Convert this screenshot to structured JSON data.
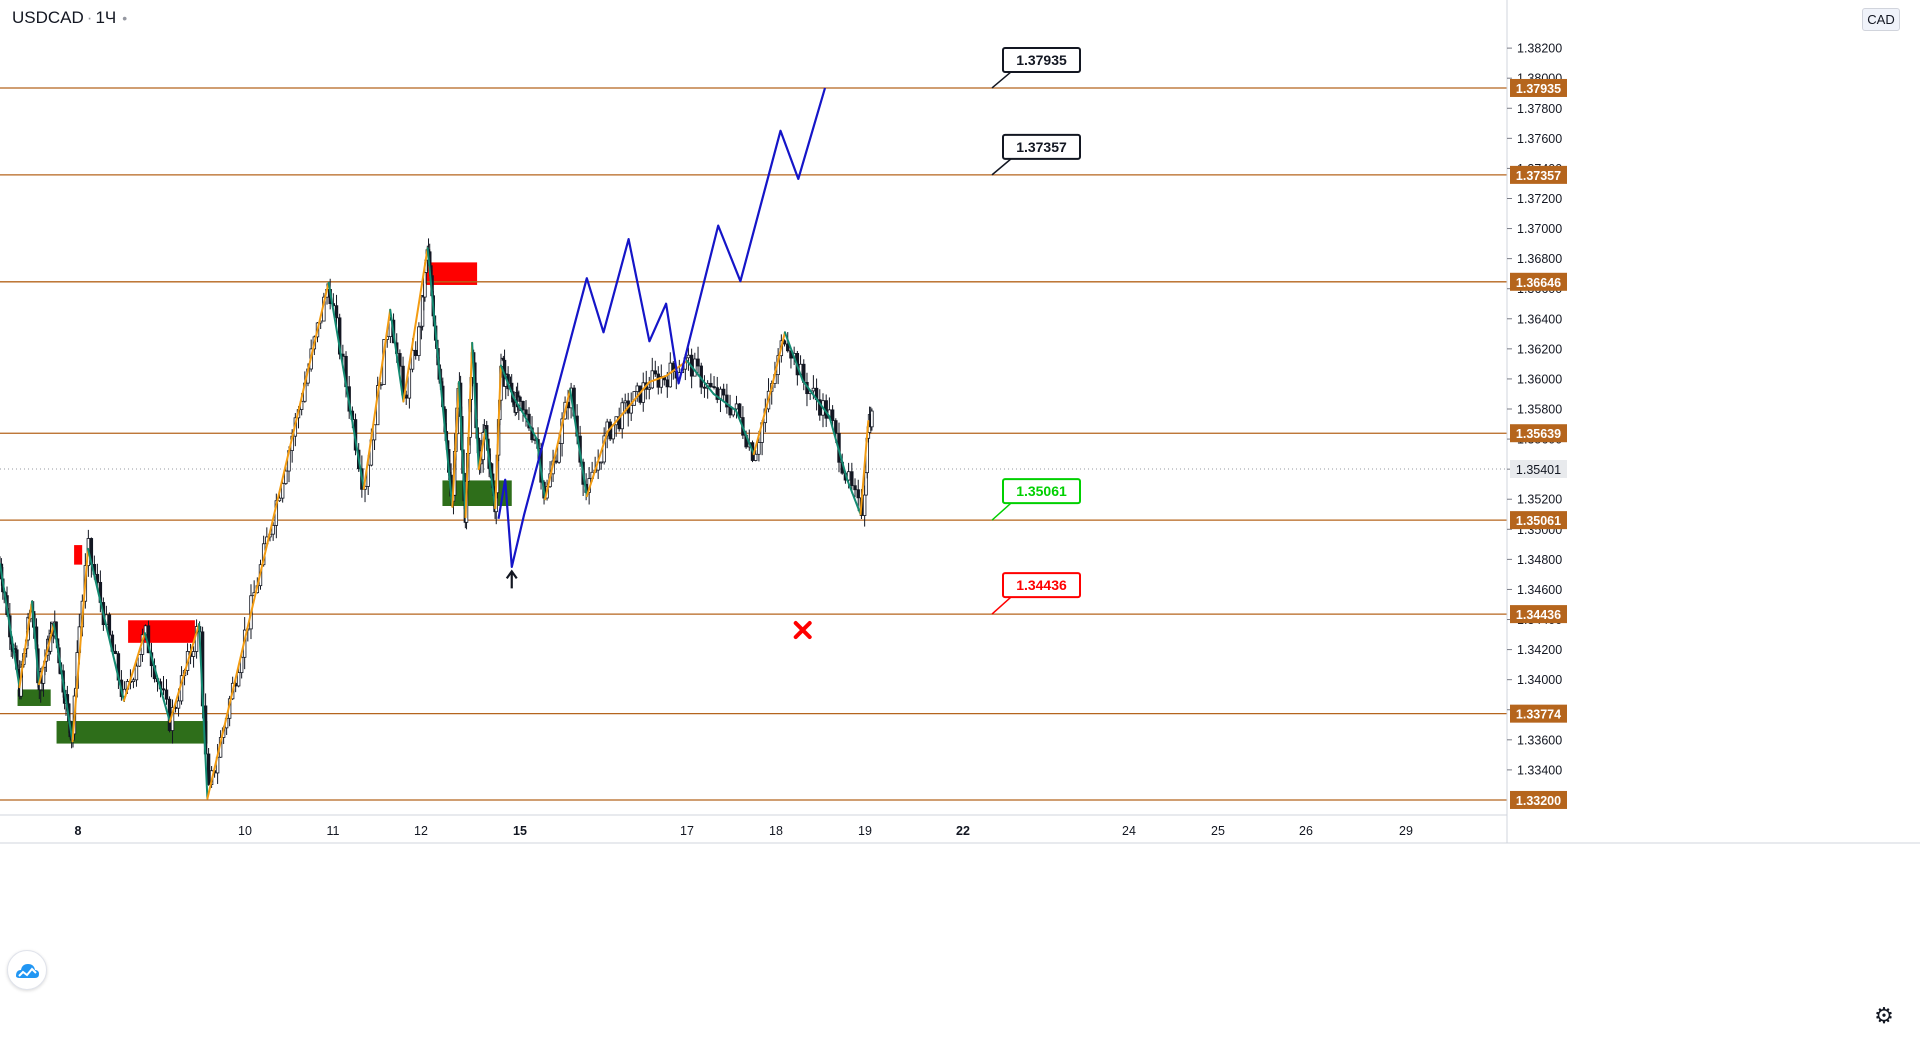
{
  "header": {
    "symbol": "USDCAD",
    "separator": "·",
    "interval": "1Ч",
    "status_dot": "•",
    "currency": "CAD"
  },
  "colors": {
    "background": "#ffffff",
    "level_line": "#b5651d",
    "level_badge": "#b5651d",
    "candle": "#131722",
    "zigzag_up": "#f39c12",
    "zigzag_down": "#138a72",
    "projection": "#1515c8",
    "supply_zone": "#ff0000",
    "demand_zone": "#2e6e1a",
    "last_price_badge": "#e8eaed",
    "callout_green": "#00d000",
    "callout_red": "#ff0000"
  },
  "chart_data": {
    "type": "line",
    "title": "USDCAD",
    "interval": "1Ч",
    "currency": "CAD",
    "ylim": [
      1.331,
      1.3852
    ],
    "y_ticks": [
      1.334,
      1.336,
      1.338,
      1.34,
      1.342,
      1.344,
      1.346,
      1.348,
      1.35,
      1.352,
      1.354,
      1.356,
      1.358,
      1.36,
      1.362,
      1.364,
      1.366,
      1.368,
      1.37,
      1.372,
      1.374,
      1.376,
      1.378,
      1.38,
      1.382
    ],
    "x_day_ticks": [
      {
        "day": 8,
        "label": "8",
        "bold": true
      },
      {
        "day": 10,
        "label": "10",
        "bold": false
      },
      {
        "day": 11,
        "label": "11",
        "bold": false
      },
      {
        "day": 12,
        "label": "12",
        "bold": false
      },
      {
        "day": 15,
        "label": "15",
        "bold": true
      },
      {
        "day": 17,
        "label": "17",
        "bold": false
      },
      {
        "day": 18,
        "label": "18",
        "bold": false
      },
      {
        "day": 19,
        "label": "19",
        "bold": false
      },
      {
        "day": 22,
        "label": "22",
        "bold": true
      },
      {
        "day": 24,
        "label": "24",
        "bold": false
      },
      {
        "day": 25,
        "label": "25",
        "bold": false
      },
      {
        "day": 26,
        "label": "26",
        "bold": false
      },
      {
        "day": 29,
        "label": "29",
        "bold": false
      }
    ],
    "levels": [
      {
        "price": 1.37935,
        "label": "1.37935"
      },
      {
        "price": 1.37357,
        "label": "1.37357"
      },
      {
        "price": 1.36646,
        "label": "1.36646"
      },
      {
        "price": 1.35639,
        "label": "1.35639"
      },
      {
        "price": 1.35061,
        "label": "1.35061"
      },
      {
        "price": 1.34436,
        "label": "1.34436"
      },
      {
        "price": 1.33774,
        "label": "1.33774"
      },
      {
        "price": 1.332,
        "label": "1.33200"
      }
    ],
    "last_price": {
      "price": 1.35401,
      "label": "1.35401"
    },
    "zones": [
      {
        "kind": "supply",
        "from": 7.9,
        "to": 8.05,
        "top": 1.34895,
        "bottom": 1.34765
      },
      {
        "kind": "supply",
        "from": 8.6,
        "to": 9.4,
        "top": 1.34395,
        "bottom": 1.34245
      },
      {
        "kind": "supply",
        "from": 12.1,
        "to": 13.7,
        "top": 1.36775,
        "bottom": 1.36625
      },
      {
        "kind": "demand",
        "from": 6.45,
        "to": 7.3,
        "top": 1.33935,
        "bottom": 1.33825
      },
      {
        "kind": "demand",
        "from": 7.45,
        "to": 9.55,
        "top": 1.33725,
        "bottom": 1.33575
      },
      {
        "kind": "demand",
        "from": 12.65,
        "to": 14.75,
        "top": 1.35325,
        "bottom": 1.35155
      }
    ],
    "series": [
      {
        "name": "",
        "role": "zigzag",
        "points": [
          [
            6.0,
            1.3477
          ],
          [
            6.5,
            1.3395
          ],
          [
            6.82,
            1.3452
          ],
          [
            7.0,
            1.3397
          ],
          [
            7.38,
            1.3437
          ],
          [
            7.86,
            1.3359
          ],
          [
            8.12,
            1.3487
          ],
          [
            8.55,
            1.3386
          ],
          [
            8.8,
            1.3431
          ],
          [
            9.1,
            1.3372
          ],
          [
            9.45,
            1.3437
          ],
          [
            9.55,
            1.3321
          ],
          [
            10.95,
            1.3664
          ],
          [
            11.35,
            1.3527
          ],
          [
            11.65,
            1.3646
          ],
          [
            11.8,
            1.3585
          ],
          [
            12.2,
            1.3687
          ],
          [
            12.95,
            1.3515
          ],
          [
            13.15,
            1.3598
          ],
          [
            13.35,
            1.3508
          ],
          [
            13.55,
            1.3624
          ],
          [
            13.75,
            1.354
          ],
          [
            13.95,
            1.3566
          ],
          [
            14.25,
            1.3514
          ],
          [
            14.42,
            1.3609
          ],
          [
            14.8,
            1.3588
          ],
          [
            15.05,
            1.3576
          ],
          [
            15.2,
            1.356
          ],
          [
            15.3,
            1.352
          ],
          [
            15.6,
            1.3593
          ],
          [
            15.8,
            1.3522
          ],
          [
            16.05,
            1.3565
          ],
          [
            16.55,
            1.3598
          ],
          [
            16.75,
            1.3602
          ],
          [
            17.0,
            1.3612
          ],
          [
            17.3,
            1.359
          ],
          [
            17.55,
            1.3579
          ],
          [
            17.75,
            1.355
          ],
          [
            17.95,
            1.3594
          ],
          [
            18.1,
            1.3631
          ],
          [
            18.3,
            1.3599
          ],
          [
            18.6,
            1.3575
          ],
          [
            18.8,
            1.3533
          ],
          [
            18.95,
            1.351
          ],
          [
            19.1,
            1.3572
          ]
        ],
        "up_color": "#f39c12",
        "down_color": "#138a72"
      },
      {
        "name": "",
        "role": "projection",
        "points": [
          [
            14.35,
            1.3507
          ],
          [
            14.55,
            1.3533
          ],
          [
            14.75,
            1.3475
          ],
          [
            15.05,
            1.351
          ],
          [
            15.8,
            1.3667
          ],
          [
            16.0,
            1.3631
          ],
          [
            16.3,
            1.3693
          ],
          [
            16.55,
            1.3625
          ],
          [
            16.75,
            1.365
          ],
          [
            16.9,
            1.3597
          ],
          [
            17.35,
            1.3702
          ],
          [
            17.6,
            1.3665
          ],
          [
            18.05,
            1.3765
          ],
          [
            18.25,
            1.3733
          ],
          [
            18.55,
            1.37935
          ]
        ],
        "color": "#1515c8"
      }
    ],
    "annotations": [
      {
        "text": "1.37935",
        "price": 1.37935,
        "style": "black"
      },
      {
        "text": "1.37357",
        "price": 1.37357,
        "style": "black"
      },
      {
        "text": "1.35061",
        "price": 1.35061,
        "style": "green"
      },
      {
        "text": "1.34436",
        "price": 1.34436,
        "style": "red"
      }
    ],
    "markers": [
      {
        "kind": "up-arrow",
        "x": 14.75,
        "price": 1.347
      },
      {
        "kind": "x-cross",
        "x": 18.3,
        "price": 1.3433
      }
    ]
  }
}
